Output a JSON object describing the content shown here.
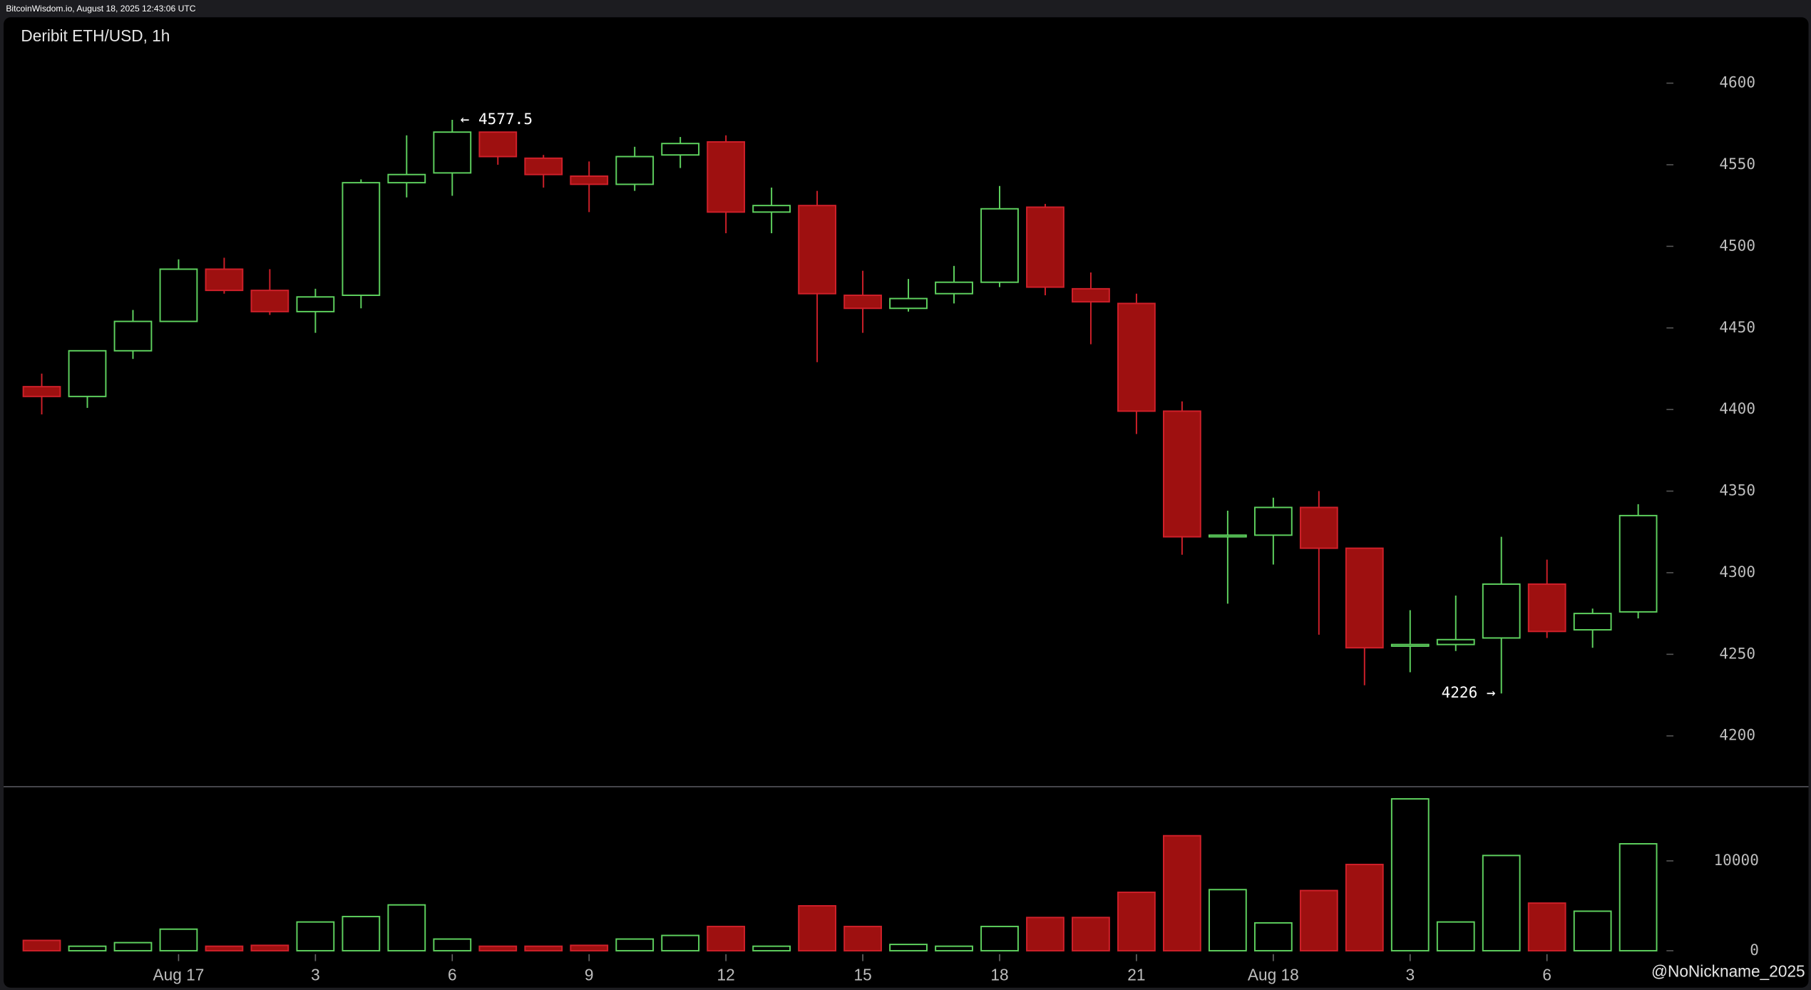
{
  "chart_data": {
    "type": "candlestick",
    "header": "BitcoinWisdom.io, August 18, 2025 12:43:06 UTC",
    "title": "Deribit ETH/USD, 1h",
    "watermark": "@NoNickname_2025",
    "categories": [
      null,
      null,
      null,
      "Aug 17",
      null,
      null,
      "3",
      null,
      null,
      "6",
      null,
      null,
      "9",
      null,
      null,
      "12",
      null,
      null,
      "15",
      null,
      null,
      "18",
      null,
      null,
      "21",
      null,
      null,
      "Aug 18",
      null,
      null,
      "3",
      null,
      null,
      "6",
      null,
      null
    ],
    "open": [
      4414,
      4408,
      4436,
      4454,
      4486,
      4473,
      4460,
      4470,
      4539,
      4545,
      4570,
      4554,
      4543,
      4538,
      4556,
      4564,
      4521,
      4525,
      4470,
      4462,
      4471,
      4478,
      4524,
      4474,
      4465,
      4399,
      4322,
      4323,
      4340,
      4315,
      4255,
      4256,
      4260,
      4293,
      4265,
      4276
    ],
    "high": [
      4422,
      4436,
      4461,
      4492,
      4493,
      4486,
      4474,
      4541,
      4568,
      4577.5,
      4570,
      4556,
      4552,
      4561,
      4567,
      4568,
      4536,
      4534,
      4485,
      4480,
      4488,
      4537,
      4526,
      4484,
      4471,
      4405,
      4338,
      4346,
      4350,
      4315,
      4277,
      4286,
      4322,
      4308,
      4278,
      4342
    ],
    "low": [
      4397,
      4401,
      4431,
      4454,
      4471,
      4458,
      4447,
      4462,
      4530,
      4531,
      4550,
      4536,
      4521,
      4534,
      4548,
      4508,
      4508,
      4429,
      4447,
      4460,
      4465,
      4475,
      4470,
      4440,
      4385,
      4311,
      4281,
      4305,
      4262,
      4231,
      4239,
      4252,
      4226,
      4260,
      4254,
      4272
    ],
    "close": [
      4408,
      4436,
      4454,
      4486,
      4473,
      4460,
      4469,
      4539,
      4544,
      4570,
      4555,
      4544,
      4538,
      4555,
      4563,
      4521,
      4525,
      4471,
      4462,
      4468,
      4478,
      4523,
      4475,
      4466,
      4399,
      4322,
      4323,
      4340,
      4315,
      4254,
      4256,
      4259,
      4293,
      4264,
      4275,
      4335
    ],
    "volume": [
      1150,
      500,
      900,
      2400,
      500,
      600,
      3200,
      3800,
      5100,
      1300,
      500,
      500,
      600,
      1300,
      1700,
      2700,
      500,
      5000,
      2700,
      700,
      500,
      2700,
      3700,
      3700,
      6500,
      12800,
      6800,
      3100,
      6700,
      9600,
      16900,
      3200,
      10600,
      5300,
      4400,
      11900
    ],
    "ylim": [
      4170,
      4630
    ],
    "yticks": [
      4200,
      4250,
      4300,
      4350,
      4400,
      4450,
      4500,
      4550,
      4600
    ],
    "volume_ylim": [
      -900,
      18000
    ],
    "volume_yticks": [
      0,
      10000
    ],
    "annotations": [
      {
        "value": 4577.5,
        "label": "← 4577.5"
      },
      {
        "value": 4226,
        "label": "4226 →"
      }
    ],
    "up_color": "#5fd35f",
    "down_color": "#d0202a",
    "down_fill": "#9e1010"
  }
}
